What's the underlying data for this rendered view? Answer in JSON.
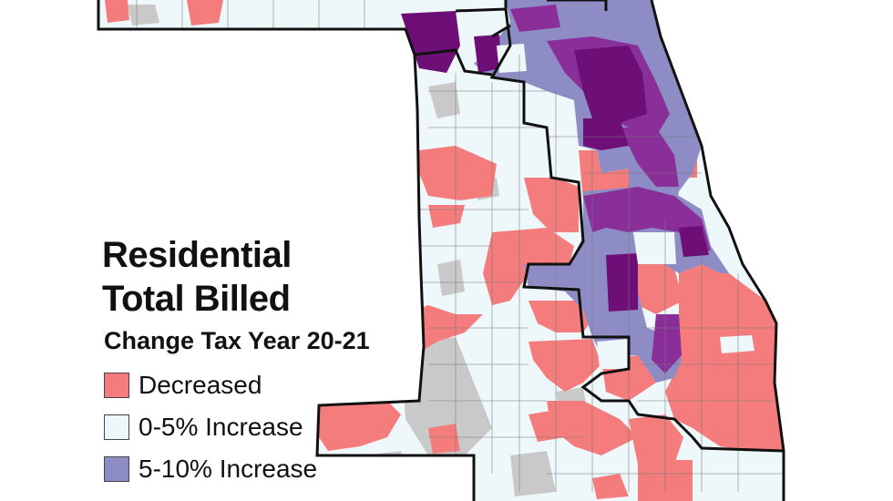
{
  "legend": {
    "title_line1": "Residential",
    "title_line2": "Total Billed",
    "subtitle": "Change Tax Year 20-21",
    "items": [
      {
        "label": "Decreased",
        "color": "#f47c7c"
      },
      {
        "label": "0-5% Increase",
        "color": "#eef7fa"
      },
      {
        "label": "5-10% Increase",
        "color": "#8e8cc4"
      }
    ]
  },
  "colors": {
    "decreased": "#f47c7c",
    "increase_0_5": "#eef7fa",
    "increase_5_10": "#8e8cc4",
    "increase_high": "#8a2f9a",
    "increase_highest": "#6e0f78",
    "no_data": "#c9c9c9",
    "boundary": "#111111"
  }
}
